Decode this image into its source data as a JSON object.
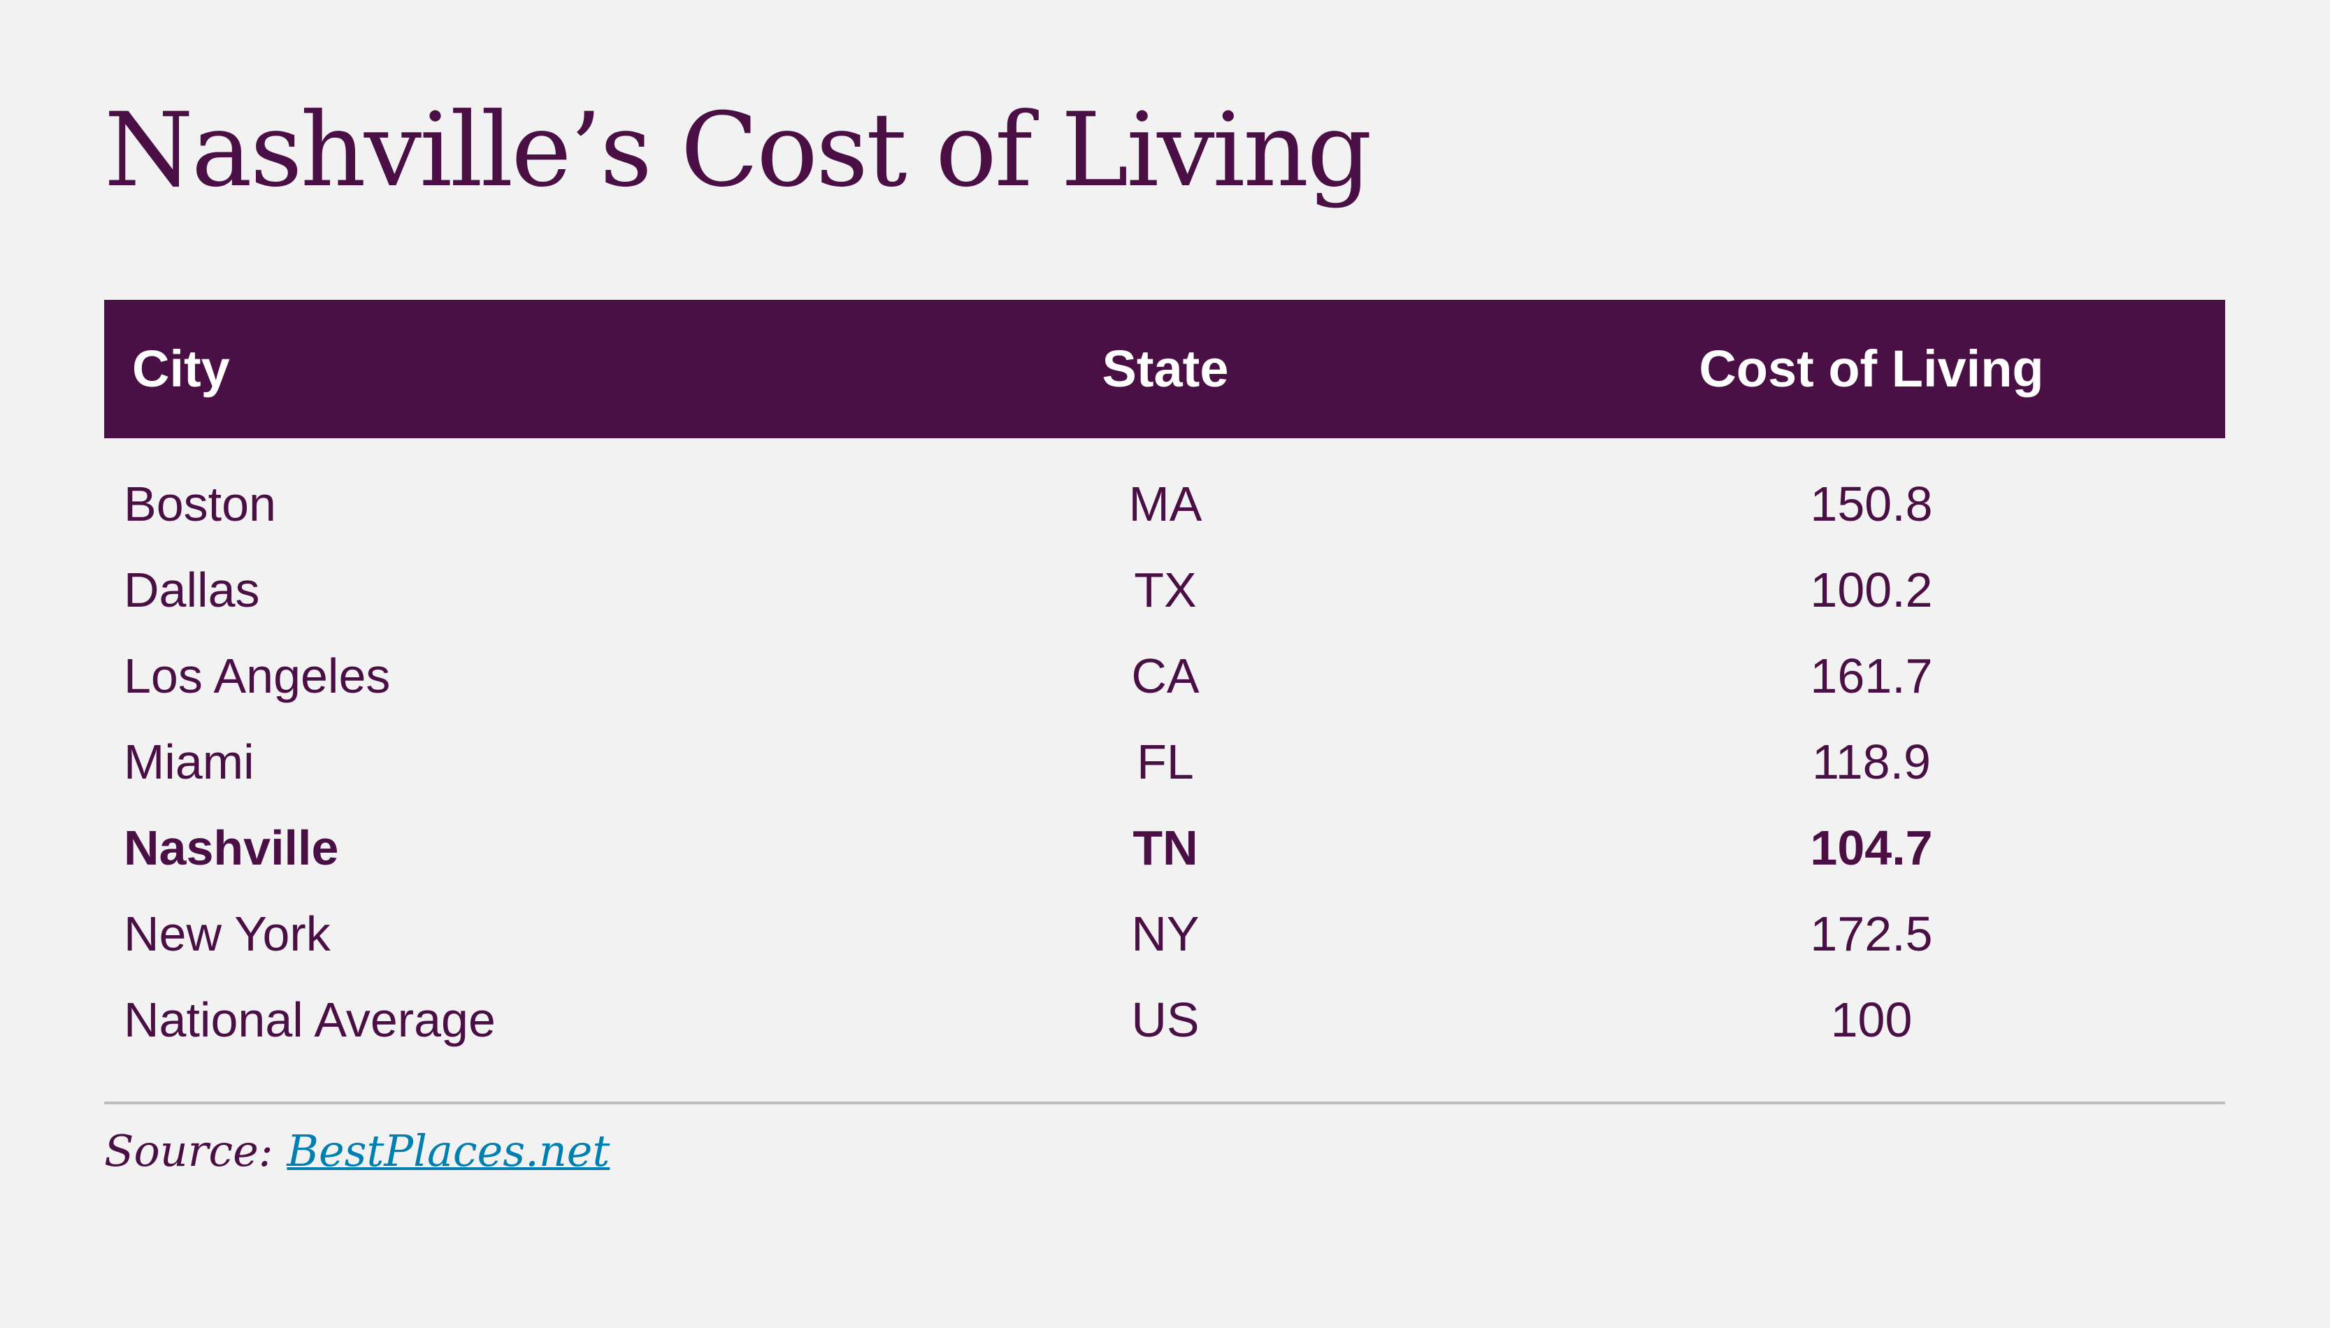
{
  "title": "Nashville’s Cost of Living",
  "table": {
    "headers": [
      "City",
      "State",
      "Cost of Living"
    ],
    "rows": [
      {
        "city": "Boston",
        "state": "MA",
        "cost": "150.8"
      },
      {
        "city": "Dallas",
        "state": "TX",
        "cost": "100.2"
      },
      {
        "city": "Los Angeles",
        "state": "CA",
        "cost": "161.7"
      },
      {
        "city": "Miami",
        "state": "FL",
        "cost": "118.9"
      },
      {
        "city": "Nashville",
        "state": "TN",
        "cost": "104.7",
        "highlighted": true
      },
      {
        "city": "New York",
        "state": "NY",
        "cost": "172.5"
      },
      {
        "city": "National Average",
        "state": "US",
        "cost": "100"
      }
    ]
  },
  "source": {
    "label": "Source:",
    "link_text": "BestPlaces.net"
  },
  "colors": {
    "brand": "#4a1045",
    "link": "#0080b0",
    "background": "#f2f2f2"
  }
}
